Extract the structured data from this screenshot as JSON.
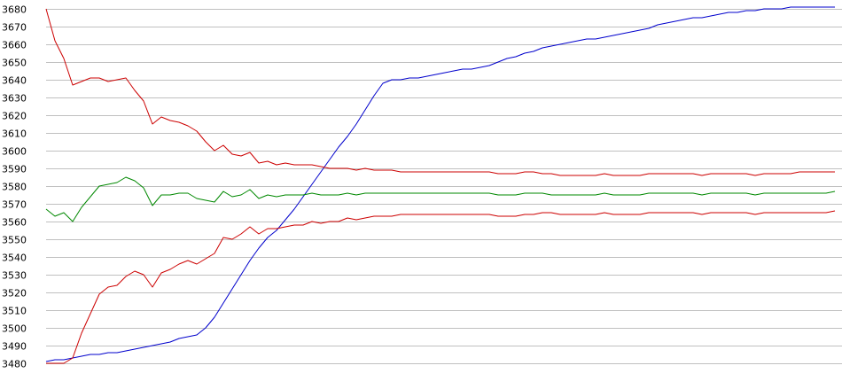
{
  "chart_data": {
    "type": "line",
    "title": "",
    "xlabel": "",
    "ylabel": "",
    "ylim": [
      3480,
      3680
    ],
    "y_ticks": [
      3480,
      3490,
      3500,
      3510,
      3520,
      3530,
      3540,
      3550,
      3560,
      3570,
      3580,
      3590,
      3600,
      3610,
      3620,
      3630,
      3640,
      3650,
      3660,
      3670,
      3680
    ],
    "grid": {
      "horizontal": true,
      "vertical": false,
      "color": "#c0c0c0"
    },
    "legend": "none",
    "x_count": 90,
    "series": [
      {
        "color": "#0000cc",
        "values": [
          3481,
          3482,
          3482,
          3483,
          3484,
          3485,
          3485,
          3486,
          3486,
          3487,
          3488,
          3489,
          3490,
          3491,
          3492,
          3494,
          3495,
          3496,
          3500,
          3506,
          3514,
          3522,
          3530,
          3538,
          3545,
          3551,
          3555,
          3561,
          3567,
          3574,
          3581,
          3588,
          3595,
          3602,
          3608,
          3615,
          3623,
          3631,
          3638,
          3640,
          3640,
          3641,
          3641,
          3642,
          3643,
          3644,
          3645,
          3646,
          3646,
          3647,
          3648,
          3650,
          3652,
          3653,
          3655,
          3656,
          3658,
          3659,
          3660,
          3661,
          3662,
          3663,
          3663,
          3664,
          3665,
          3666,
          3667,
          3668,
          3669,
          3671,
          3672,
          3673,
          3674,
          3675,
          3675,
          3676,
          3677,
          3678,
          3678,
          3679,
          3679,
          3680,
          3680,
          3680,
          3681,
          3681,
          3681,
          3681,
          3681,
          3681
        ]
      },
      {
        "color": "#cc0000",
        "values": [
          3680,
          3662,
          3652,
          3637,
          3639,
          3641,
          3641,
          3639,
          3640,
          3641,
          3634,
          3628,
          3615,
          3619,
          3617,
          3616,
          3614,
          3611,
          3605,
          3600,
          3603,
          3598,
          3597,
          3599,
          3593,
          3594,
          3592,
          3593,
          3592,
          3592,
          3592,
          3591,
          3590,
          3590,
          3590,
          3589,
          3590,
          3589,
          3589,
          3589,
          3588,
          3588,
          3588,
          3588,
          3588,
          3588,
          3588,
          3588,
          3588,
          3588,
          3588,
          3587,
          3587,
          3587,
          3588,
          3588,
          3587,
          3587,
          3586,
          3586,
          3586,
          3586,
          3586,
          3587,
          3586,
          3586,
          3586,
          3586,
          3587,
          3587,
          3587,
          3587,
          3587,
          3587,
          3586,
          3587,
          3587,
          3587,
          3587,
          3587,
          3586,
          3587,
          3587,
          3587,
          3587,
          3588,
          3588,
          3588,
          3588,
          3588
        ]
      },
      {
        "color": "#008800",
        "values": [
          3567,
          3563,
          3565,
          3560,
          3568,
          3574,
          3580,
          3581,
          3582,
          3585,
          3583,
          3579,
          3569,
          3575,
          3575,
          3576,
          3576,
          3573,
          3572,
          3571,
          3577,
          3574,
          3575,
          3578,
          3573,
          3575,
          3574,
          3575,
          3575,
          3575,
          3576,
          3575,
          3575,
          3575,
          3576,
          3575,
          3576,
          3576,
          3576,
          3576,
          3576,
          3576,
          3576,
          3576,
          3576,
          3576,
          3576,
          3576,
          3576,
          3576,
          3576,
          3575,
          3575,
          3575,
          3576,
          3576,
          3576,
          3575,
          3575,
          3575,
          3575,
          3575,
          3575,
          3576,
          3575,
          3575,
          3575,
          3575,
          3576,
          3576,
          3576,
          3576,
          3576,
          3576,
          3575,
          3576,
          3576,
          3576,
          3576,
          3576,
          3575,
          3576,
          3576,
          3576,
          3576,
          3576,
          3576,
          3576,
          3576,
          3577
        ]
      },
      {
        "color": "#cc0000",
        "values": [
          3480,
          3480,
          3480,
          3483,
          3497,
          3508,
          3519,
          3523,
          3524,
          3529,
          3532,
          3530,
          3523,
          3531,
          3533,
          3536,
          3538,
          3536,
          3539,
          3542,
          3551,
          3550,
          3553,
          3557,
          3553,
          3556,
          3556,
          3557,
          3558,
          3558,
          3560,
          3559,
          3560,
          3560,
          3562,
          3561,
          3562,
          3563,
          3563,
          3563,
          3564,
          3564,
          3564,
          3564,
          3564,
          3564,
          3564,
          3564,
          3564,
          3564,
          3564,
          3563,
          3563,
          3563,
          3564,
          3564,
          3565,
          3565,
          3564,
          3564,
          3564,
          3564,
          3564,
          3565,
          3564,
          3564,
          3564,
          3564,
          3565,
          3565,
          3565,
          3565,
          3565,
          3565,
          3564,
          3565,
          3565,
          3565,
          3565,
          3565,
          3564,
          3565,
          3565,
          3565,
          3565,
          3565,
          3565,
          3565,
          3565,
          3566
        ]
      }
    ]
  }
}
